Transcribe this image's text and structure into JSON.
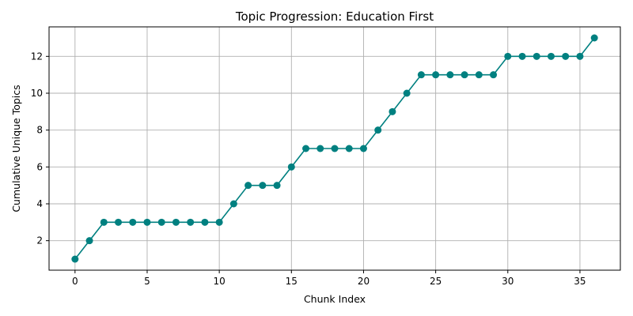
{
  "chart_data": {
    "type": "line",
    "title": "Topic Progression: Education First",
    "xlabel": "Chunk Index",
    "ylabel": "Cumulative Unique Topics",
    "xlim": [
      -1.8,
      37.8
    ],
    "ylim": [
      0.4,
      13.6
    ],
    "xticks": [
      0,
      5,
      10,
      15,
      20,
      25,
      30,
      35
    ],
    "yticks": [
      2,
      4,
      6,
      8,
      10,
      12
    ],
    "grid": true,
    "marker": "circle",
    "color": "#008080",
    "x": [
      0,
      1,
      2,
      3,
      4,
      5,
      6,
      7,
      8,
      9,
      10,
      11,
      12,
      13,
      14,
      15,
      16,
      17,
      18,
      19,
      20,
      21,
      22,
      23,
      24,
      25,
      26,
      27,
      28,
      29,
      30,
      31,
      32,
      33,
      34,
      35,
      36
    ],
    "y": [
      1,
      2,
      3,
      3,
      3,
      3,
      3,
      3,
      3,
      3,
      3,
      4,
      5,
      5,
      5,
      6,
      7,
      7,
      7,
      7,
      7,
      8,
      9,
      10,
      11,
      11,
      11,
      11,
      11,
      11,
      12,
      12,
      12,
      12,
      12,
      12,
      13
    ]
  }
}
